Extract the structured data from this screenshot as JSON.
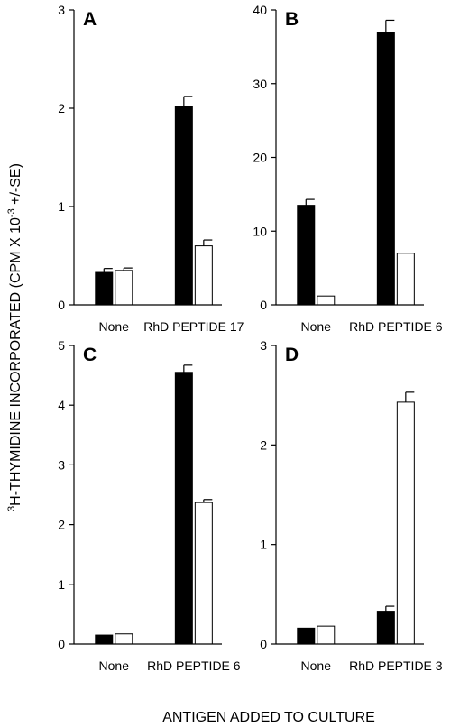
{
  "figure": {
    "ylabel_sup": "3",
    "ylabel_main": "H-THYMIDINE INCORPORATED (CPM X 10",
    "ylabel_exp": "-3",
    "ylabel_tail": " +/-SE)",
    "xlabel": "ANTIGEN ADDED TO CULTURE"
  },
  "chart_data": [
    {
      "type": "bar",
      "panel": "A",
      "categories": [
        "None",
        "RhD PEPTIDE 17"
      ],
      "ylim": [
        0,
        3
      ],
      "yticks": [
        0,
        1,
        2,
        3
      ],
      "series": [
        {
          "color": "#000000",
          "values": [
            0.33,
            2.02
          ],
          "errors": [
            0.04,
            0.1
          ]
        },
        {
          "color": "#ffffff",
          "values": [
            0.35,
            0.6
          ],
          "errors": [
            0.025,
            0.06
          ]
        }
      ]
    },
    {
      "type": "bar",
      "panel": "B",
      "categories": [
        "None",
        "RhD PEPTIDE 6"
      ],
      "ylim": [
        0,
        40
      ],
      "yticks": [
        0,
        10,
        20,
        30,
        40
      ],
      "series": [
        {
          "color": "#000000",
          "values": [
            13.5,
            37.0
          ],
          "errors": [
            0.8,
            1.6
          ]
        },
        {
          "color": "#ffffff",
          "values": [
            1.2,
            7.0
          ],
          "errors": [
            0,
            0
          ]
        }
      ]
    },
    {
      "type": "bar",
      "panel": "C",
      "categories": [
        "None",
        "RhD PEPTIDE 6"
      ],
      "ylim": [
        0,
        5
      ],
      "yticks": [
        0,
        1,
        2,
        3,
        4,
        5
      ],
      "series": [
        {
          "color": "#000000",
          "values": [
            0.15,
            4.55
          ],
          "errors": [
            0,
            0.12
          ]
        },
        {
          "color": "#ffffff",
          "values": [
            0.17,
            2.37
          ],
          "errors": [
            0,
            0.05
          ]
        }
      ]
    },
    {
      "type": "bar",
      "panel": "D",
      "categories": [
        "None",
        "RhD PEPTIDE 3"
      ],
      "ylim": [
        0,
        3
      ],
      "yticks": [
        0,
        1,
        2,
        3
      ],
      "yticklabels": [
        "0",
        "1",
        "2",
        "3"
      ],
      "series": [
        {
          "color": "#000000",
          "values": [
            0.16,
            0.33
          ],
          "errors": [
            0,
            0.05
          ]
        },
        {
          "color": "#ffffff",
          "values": [
            0.18,
            2.43
          ],
          "errors": [
            0,
            0.1
          ]
        }
      ]
    }
  ]
}
